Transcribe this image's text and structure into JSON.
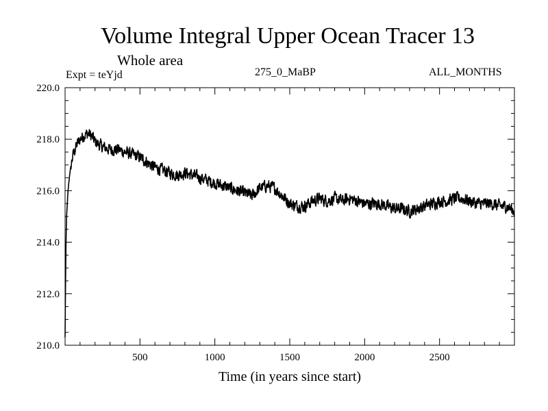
{
  "header": {
    "title": "Volume Integral Upper Ocean Tracer 13",
    "subtitle": "Whole area",
    "experiment": "Expt = teYjd",
    "period": "275_0_MaBP",
    "months": "ALL_MONTHS"
  },
  "chart_data": {
    "type": "line",
    "title": "Volume Integral Upper Ocean Tracer 13",
    "subtitle": "Whole area",
    "xlabel": "Time (in years since start)",
    "ylabel": "",
    "xlim": [
      0,
      3000
    ],
    "ylim": [
      210.0,
      220.0
    ],
    "x_ticks": [
      500,
      1000,
      1500,
      2000,
      2500
    ],
    "x_tick_labels": [
      "500",
      "1000",
      "1500",
      "2000",
      "2500"
    ],
    "y_ticks": [
      210,
      212,
      214,
      216,
      218,
      220
    ],
    "y_tick_labels": [
      "210.0",
      "212.0",
      "214.0",
      "216.0",
      "218.0",
      "220.0"
    ],
    "grid": false,
    "series": [
      {
        "name": "Upper Ocean Tracer 13",
        "color": "#000000",
        "x": [
          0,
          5,
          10,
          20,
          30,
          40,
          50,
          60,
          80,
          100,
          120,
          140,
          160,
          180,
          200,
          250,
          300,
          350,
          400,
          450,
          500,
          550,
          600,
          650,
          700,
          750,
          800,
          850,
          900,
          950,
          1000,
          1050,
          1100,
          1150,
          1200,
          1250,
          1300,
          1350,
          1400,
          1450,
          1500,
          1550,
          1600,
          1650,
          1700,
          1750,
          1800,
          1850,
          1900,
          1950,
          2000,
          2050,
          2100,
          2150,
          2200,
          2250,
          2300,
          2350,
          2400,
          2450,
          2500,
          2550,
          2600,
          2650,
          2700,
          2750,
          2800,
          2850,
          2900,
          2950,
          3000
        ],
        "values": [
          210.3,
          213.5,
          215.0,
          216.0,
          216.6,
          217.0,
          217.3,
          217.5,
          217.8,
          218.0,
          218.1,
          218.2,
          218.2,
          218.1,
          217.9,
          217.7,
          217.6,
          217.6,
          217.5,
          217.4,
          217.3,
          217.1,
          216.9,
          216.8,
          216.7,
          216.6,
          216.7,
          216.6,
          216.5,
          216.4,
          216.3,
          216.2,
          216.1,
          216.0,
          215.9,
          215.8,
          216.1,
          216.2,
          216.1,
          215.8,
          215.5,
          215.4,
          215.4,
          215.6,
          215.7,
          215.6,
          215.7,
          215.6,
          215.7,
          215.6,
          215.5,
          215.5,
          215.5,
          215.4,
          215.3,
          215.3,
          215.2,
          215.3,
          215.4,
          215.5,
          215.6,
          215.6,
          215.7,
          215.7,
          215.6,
          215.5,
          215.5,
          215.5,
          215.4,
          215.4,
          215.2
        ]
      }
    ]
  }
}
